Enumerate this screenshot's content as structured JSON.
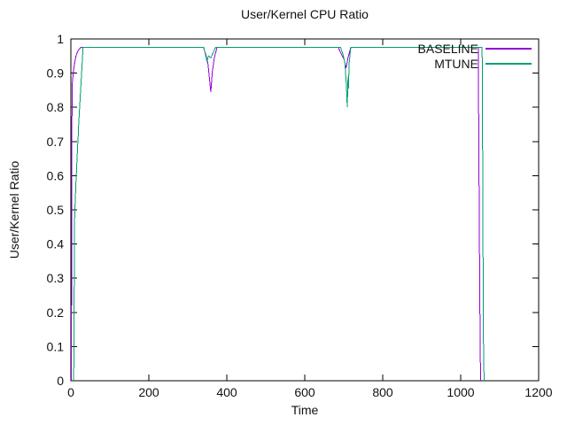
{
  "chart_data": {
    "type": "line",
    "title": "User/Kernel CPU Ratio",
    "xlabel": "Time",
    "ylabel": "User/Kernel Ratio",
    "xlim": [
      0,
      1200
    ],
    "ylim": [
      0,
      1
    ],
    "xticks": [
      {
        "value": 0,
        "label": "0"
      },
      {
        "value": 200,
        "label": "200"
      },
      {
        "value": 400,
        "label": "400"
      },
      {
        "value": 600,
        "label": "600"
      },
      {
        "value": 800,
        "label": "800"
      },
      {
        "value": 1000,
        "label": "1000"
      },
      {
        "value": 1200,
        "label": "1200"
      }
    ],
    "yticks": [
      {
        "value": 0,
        "label": "0"
      },
      {
        "value": 0.1,
        "label": "0.1"
      },
      {
        "value": 0.2,
        "label": "0.2"
      },
      {
        "value": 0.3,
        "label": "0.3"
      },
      {
        "value": 0.4,
        "label": "0.4"
      },
      {
        "value": 0.5,
        "label": "0.5"
      },
      {
        "value": 0.6,
        "label": "0.6"
      },
      {
        "value": 0.7,
        "label": "0.7"
      },
      {
        "value": 0.8,
        "label": "0.8"
      },
      {
        "value": 0.9,
        "label": "0.9"
      },
      {
        "value": 1,
        "label": "1"
      }
    ],
    "grid": false,
    "legend_position": "inside-top-right",
    "axis_color": "#000000",
    "series": [
      {
        "name": "BASELINE",
        "color": "#9400d3",
        "points": [
          [
            1,
            0
          ],
          [
            2,
            0.3
          ],
          [
            3,
            0.845
          ],
          [
            4,
            0.875
          ],
          [
            6,
            0.9
          ],
          [
            9,
            0.925
          ],
          [
            13,
            0.95
          ],
          [
            18,
            0.965
          ],
          [
            25,
            0.975
          ],
          [
            340,
            0.975
          ],
          [
            346,
            0.955
          ],
          [
            352,
            0.925
          ],
          [
            359,
            0.845
          ],
          [
            363,
            0.905
          ],
          [
            368,
            0.945
          ],
          [
            375,
            0.975
          ],
          [
            686,
            0.975
          ],
          [
            694,
            0.955
          ],
          [
            701,
            0.94
          ],
          [
            706,
            0.915
          ],
          [
            711,
            0.945
          ],
          [
            718,
            0.975
          ],
          [
            1045,
            0.975
          ],
          [
            1047,
            0.6
          ],
          [
            1049,
            0.25
          ],
          [
            1051,
            0
          ]
        ]
      },
      {
        "name": "MTUNE",
        "color": "#009e73",
        "points": [
          [
            7,
            0
          ],
          [
            8,
            0.09
          ],
          [
            9,
            0.43
          ],
          [
            10,
            0.5
          ],
          [
            11,
            0.52
          ],
          [
            12,
            0.55
          ],
          [
            13,
            0.58
          ],
          [
            14,
            0.6
          ],
          [
            15,
            0.63
          ],
          [
            16,
            0.65
          ],
          [
            17,
            0.68
          ],
          [
            18,
            0.7
          ],
          [
            19,
            0.72
          ],
          [
            20,
            0.75
          ],
          [
            21,
            0.77
          ],
          [
            22,
            0.79
          ],
          [
            23,
            0.81
          ],
          [
            24,
            0.83
          ],
          [
            25,
            0.85
          ],
          [
            26,
            0.87
          ],
          [
            27,
            0.89
          ],
          [
            28,
            0.91
          ],
          [
            29,
            0.93
          ],
          [
            30,
            0.95
          ],
          [
            31,
            0.975
          ],
          [
            341,
            0.975
          ],
          [
            345,
            0.955
          ],
          [
            349,
            0.935
          ],
          [
            353,
            0.95
          ],
          [
            359,
            0.945
          ],
          [
            365,
            0.96
          ],
          [
            371,
            0.975
          ],
          [
            692,
            0.975
          ],
          [
            698,
            0.955
          ],
          [
            703,
            0.93
          ],
          [
            707,
            0.86
          ],
          [
            709,
            0.8
          ],
          [
            711,
            0.89
          ],
          [
            712,
            0.855
          ],
          [
            714,
            0.93
          ],
          [
            718,
            0.975
          ],
          [
            1055,
            0.975
          ],
          [
            1057,
            0.5
          ],
          [
            1058,
            0.15
          ],
          [
            1060,
            0
          ]
        ]
      }
    ]
  }
}
